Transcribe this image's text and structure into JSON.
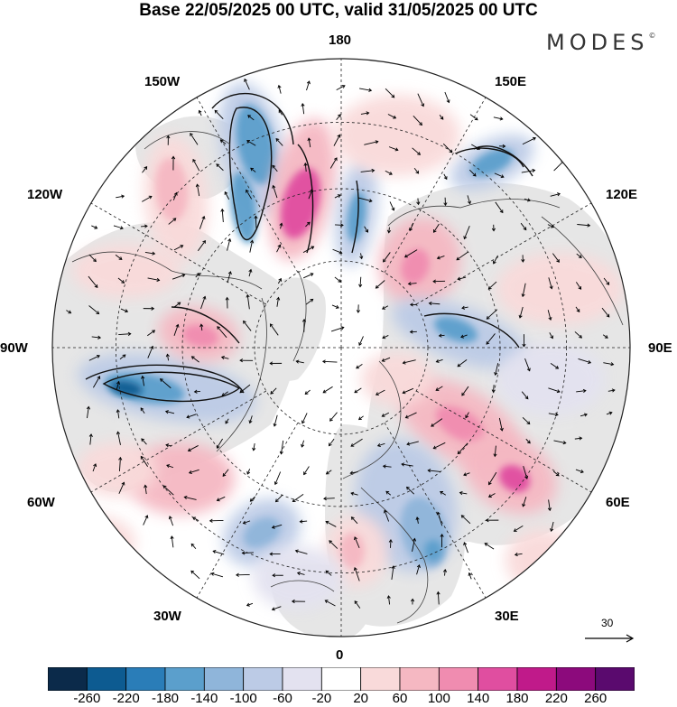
{
  "title": "Base 22/05/2025 00 UTC, valid 31/05/2025 00 UTC",
  "logo": {
    "text": "MODES",
    "mark": "©"
  },
  "longitude_labels": [
    {
      "key": "180",
      "text": "180"
    },
    {
      "key": "150W",
      "text": "150W"
    },
    {
      "key": "150E",
      "text": "150E"
    },
    {
      "key": "120W",
      "text": "120W"
    },
    {
      "key": "120E",
      "text": "120E"
    },
    {
      "key": "90W",
      "text": "90W"
    },
    {
      "key": "90E",
      "text": "90E"
    },
    {
      "key": "60W",
      "text": "60W"
    },
    {
      "key": "60E",
      "text": "60E"
    },
    {
      "key": "30W",
      "text": "30W"
    },
    {
      "key": "30E",
      "text": "30E"
    },
    {
      "key": "0",
      "text": "0"
    }
  ],
  "vector_reference": {
    "value": "30"
  },
  "colorbar": {
    "ticks": [
      "-260",
      "-220",
      "-180",
      "-140",
      "-100",
      "-60",
      "-20",
      "20",
      "60",
      "100",
      "140",
      "180",
      "220",
      "260"
    ],
    "colors": [
      "#0b2a4a",
      "#0d5b91",
      "#2a7db8",
      "#5b9fcc",
      "#8fb5da",
      "#bccbe6",
      "#e3e2f0",
      "#ffffff",
      "#f9dada",
      "#f5b8c2",
      "#f08cb0",
      "#e04ea0",
      "#c01a8a",
      "#8c0a7c",
      "#5a0a6e"
    ]
  },
  "map": {
    "projection": "north polar stereographic",
    "field": "height anomaly with wind vectors",
    "colors": {
      "land": "#e6e6e6",
      "ocean": "#ffffff",
      "coast": "#404040",
      "grid": "#222222"
    }
  }
}
